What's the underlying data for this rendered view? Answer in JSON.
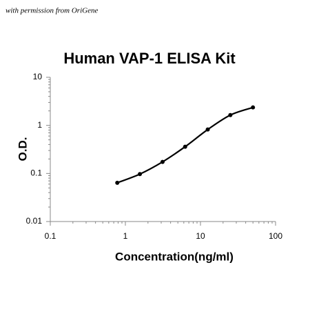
{
  "watermark": "with permission from OriGene",
  "chart_data": {
    "type": "line",
    "title": "Human VAP-1 ELISA Kit",
    "x_label": "Concentration(ng/ml)",
    "y_label": "O.D.",
    "x": [
      0.78,
      1.56,
      3.125,
      6.25,
      12.5,
      25,
      50
    ],
    "series": [
      {
        "color": "#000000",
        "values": [
          0.064,
          0.097,
          0.174,
          0.36,
          0.82,
          1.64,
          2.36
        ]
      }
    ],
    "xlim": [
      0.1,
      100
    ],
    "xticks": [
      0.1,
      1,
      10,
      100
    ],
    "ylim": [
      0.01,
      10
    ],
    "yticks": [
      0.01,
      0.1,
      1,
      10
    ],
    "xscale": "log",
    "yscale": "log",
    "smooth": true,
    "markers": true
  }
}
